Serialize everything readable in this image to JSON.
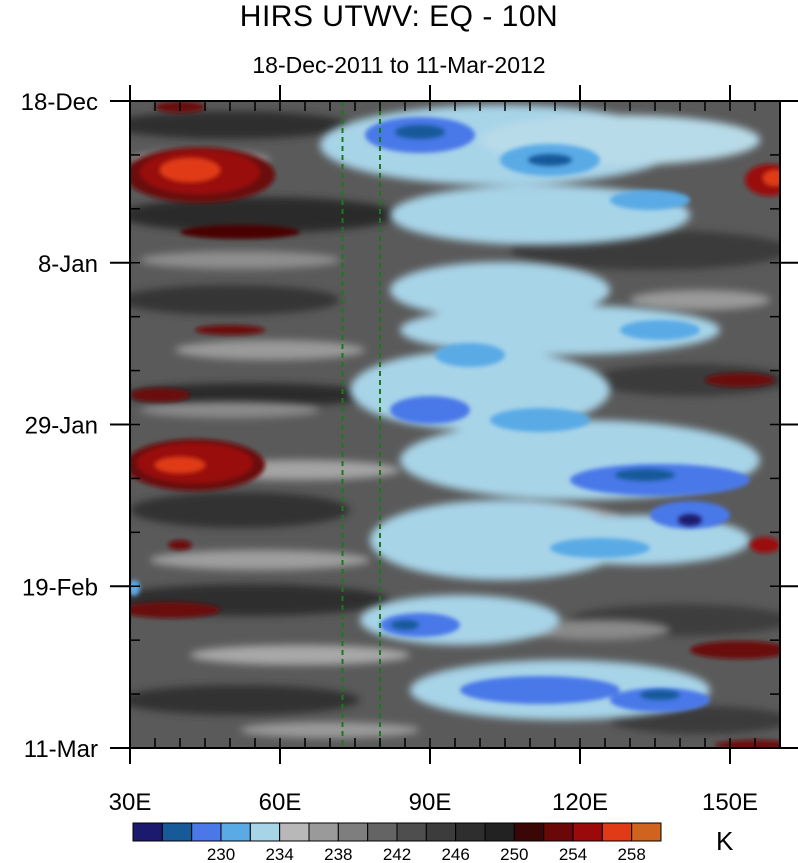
{
  "chart_data": {
    "type": "heatmap",
    "title": "HIRS UTWV: EQ - 10N",
    "subtitle": "18-Dec-2011 to 11-Mar-2012",
    "x": {
      "label": "",
      "range": [
        30,
        160
      ],
      "unit": "longitude (E)",
      "tick_values": [
        30,
        60,
        90,
        120,
        150
      ],
      "tick_labels": [
        "30E",
        "60E",
        "90E",
        "120E",
        "150E"
      ]
    },
    "y": {
      "label": "",
      "range_days": [
        0,
        84
      ],
      "direction": "down",
      "tick_values": [
        0,
        21,
        42,
        63,
        84
      ],
      "tick_labels": [
        "18-Dec",
        "8-Jan",
        "29-Jan",
        "19-Feb",
        "11-Mar"
      ]
    },
    "reference_lines": [
      {
        "orientation": "vertical",
        "x": 72.5,
        "color": "#1a7a1a",
        "style": "dashed"
      },
      {
        "orientation": "vertical",
        "x": 80,
        "color": "#1a7a1a",
        "style": "dashed"
      }
    ],
    "colorbar": {
      "units": "K",
      "levels": [
        226,
        228,
        230,
        232,
        234,
        236,
        238,
        240,
        242,
        244,
        246,
        248,
        250,
        252,
        254,
        256,
        258
      ],
      "labeled_levels": [
        230,
        234,
        238,
        242,
        246,
        250,
        254,
        258
      ],
      "colors": [
        "#1c1a6e",
        "#165a9a",
        "#4a78e8",
        "#5aaae6",
        "#a8d4e8",
        "#b8b8b8",
        "#9a9a9a",
        "#7e7e7e",
        "#646464",
        "#4e4e4e",
        "#3c3c3c",
        "#2e2e2e",
        "#222222",
        "#3a0606",
        "#6a0808",
        "#9a0a0a",
        "#e03a16",
        "#d0641e"
      ]
    },
    "features": [
      {
        "name": "warm-patch-west-dec",
        "lon": [
          30,
          52
        ],
        "day": [
          6,
          14
        ],
        "value_K": 258
      },
      {
        "name": "warm-patch-west-jan",
        "lon": [
          30,
          55
        ],
        "day": [
          44,
          50
        ],
        "value_K": 256
      },
      {
        "name": "cold-band-east-dec",
        "lon": [
          77,
          110
        ],
        "day": [
          1,
          6
        ],
        "value_K": 232
      },
      {
        "name": "cold-band-east-jan",
        "lon": [
          115,
          155
        ],
        "day": [
          45,
          52
        ],
        "value_K": 232
      }
    ]
  }
}
